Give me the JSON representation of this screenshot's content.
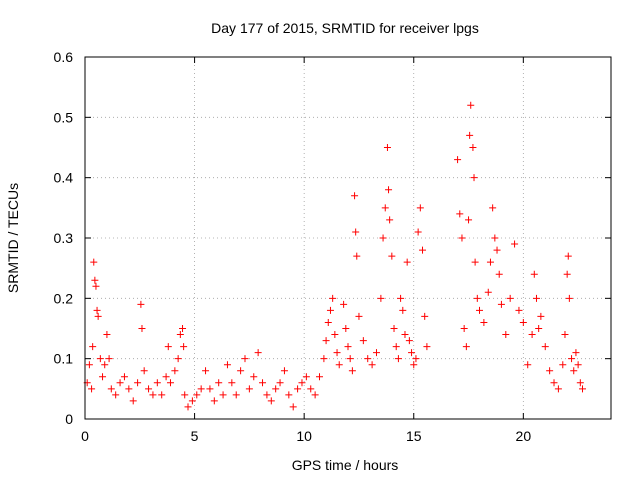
{
  "chart_data": {
    "type": "scatter",
    "title": "Day 177 of 2015, SRMTID for receiver lpgs",
    "xlabel": "GPS time / hours",
    "ylabel": "SRMTID / TECUs",
    "xlim": [
      0,
      24
    ],
    "ylim": [
      0,
      0.6
    ],
    "x_ticks": [
      0,
      5,
      10,
      15,
      20
    ],
    "x_tick_labels": [
      "0",
      "5",
      "10",
      "15",
      "20"
    ],
    "y_ticks": [
      0,
      0.1,
      0.2,
      0.3,
      0.4,
      0.5,
      0.6
    ],
    "y_tick_labels": [
      "0",
      "0.1",
      "0.2",
      "0.3",
      "0.4",
      "0.5",
      "0.6"
    ],
    "grid": true,
    "marker": "plus",
    "marker_color": "#ff0000",
    "series": [
      {
        "name": "SRMTID",
        "points": [
          [
            0.1,
            0.06
          ],
          [
            0.2,
            0.09
          ],
          [
            0.3,
            0.05
          ],
          [
            0.35,
            0.12
          ],
          [
            0.4,
            0.26
          ],
          [
            0.45,
            0.23
          ],
          [
            0.5,
            0.22
          ],
          [
            0.55,
            0.18
          ],
          [
            0.6,
            0.17
          ],
          [
            0.7,
            0.1
          ],
          [
            0.8,
            0.07
          ],
          [
            0.9,
            0.09
          ],
          [
            1.0,
            0.14
          ],
          [
            1.1,
            0.1
          ],
          [
            1.2,
            0.05
          ],
          [
            1.4,
            0.04
          ],
          [
            1.6,
            0.06
          ],
          [
            1.8,
            0.07
          ],
          [
            2.0,
            0.05
          ],
          [
            2.2,
            0.03
          ],
          [
            2.4,
            0.06
          ],
          [
            2.55,
            0.19
          ],
          [
            2.6,
            0.15
          ],
          [
            2.7,
            0.08
          ],
          [
            2.9,
            0.05
          ],
          [
            3.1,
            0.04
          ],
          [
            3.3,
            0.06
          ],
          [
            3.5,
            0.04
          ],
          [
            3.7,
            0.07
          ],
          [
            3.8,
            0.12
          ],
          [
            3.9,
            0.06
          ],
          [
            4.1,
            0.08
          ],
          [
            4.25,
            0.1
          ],
          [
            4.35,
            0.14
          ],
          [
            4.45,
            0.15
          ],
          [
            4.5,
            0.12
          ],
          [
            4.55,
            0.04
          ],
          [
            4.7,
            0.02
          ],
          [
            4.9,
            0.03
          ],
          [
            5.1,
            0.04
          ],
          [
            5.3,
            0.05
          ],
          [
            5.5,
            0.08
          ],
          [
            5.7,
            0.05
          ],
          [
            5.9,
            0.03
          ],
          [
            6.1,
            0.06
          ],
          [
            6.3,
            0.04
          ],
          [
            6.5,
            0.09
          ],
          [
            6.7,
            0.06
          ],
          [
            6.9,
            0.04
          ],
          [
            7.1,
            0.08
          ],
          [
            7.3,
            0.1
          ],
          [
            7.5,
            0.05
          ],
          [
            7.7,
            0.07
          ],
          [
            7.9,
            0.11
          ],
          [
            8.1,
            0.06
          ],
          [
            8.3,
            0.04
          ],
          [
            8.5,
            0.03
          ],
          [
            8.7,
            0.05
          ],
          [
            8.9,
            0.06
          ],
          [
            9.1,
            0.08
          ],
          [
            9.3,
            0.04
          ],
          [
            9.5,
            0.02
          ],
          [
            9.7,
            0.05
          ],
          [
            9.9,
            0.06
          ],
          [
            10.1,
            0.07
          ],
          [
            10.3,
            0.05
          ],
          [
            10.5,
            0.04
          ],
          [
            10.7,
            0.07
          ],
          [
            10.9,
            0.1
          ],
          [
            11.0,
            0.13
          ],
          [
            11.1,
            0.16
          ],
          [
            11.2,
            0.18
          ],
          [
            11.3,
            0.2
          ],
          [
            11.4,
            0.14
          ],
          [
            11.5,
            0.11
          ],
          [
            11.6,
            0.09
          ],
          [
            11.8,
            0.19
          ],
          [
            11.9,
            0.15
          ],
          [
            12.0,
            0.12
          ],
          [
            12.1,
            0.1
          ],
          [
            12.2,
            0.08
          ],
          [
            12.3,
            0.37
          ],
          [
            12.35,
            0.31
          ],
          [
            12.4,
            0.27
          ],
          [
            12.5,
            0.17
          ],
          [
            12.7,
            0.13
          ],
          [
            12.9,
            0.1
          ],
          [
            13.1,
            0.09
          ],
          [
            13.3,
            0.11
          ],
          [
            13.5,
            0.2
          ],
          [
            13.6,
            0.3
          ],
          [
            13.7,
            0.35
          ],
          [
            13.8,
            0.45
          ],
          [
            13.85,
            0.38
          ],
          [
            13.9,
            0.33
          ],
          [
            14.0,
            0.27
          ],
          [
            14.1,
            0.15
          ],
          [
            14.2,
            0.12
          ],
          [
            14.3,
            0.1
          ],
          [
            14.4,
            0.2
          ],
          [
            14.5,
            0.18
          ],
          [
            14.6,
            0.14
          ],
          [
            14.7,
            0.26
          ],
          [
            14.8,
            0.13
          ],
          [
            14.9,
            0.11
          ],
          [
            15.0,
            0.09
          ],
          [
            15.1,
            0.1
          ],
          [
            15.2,
            0.31
          ],
          [
            15.3,
            0.35
          ],
          [
            15.4,
            0.28
          ],
          [
            15.5,
            0.17
          ],
          [
            15.6,
            0.12
          ],
          [
            17.0,
            0.43
          ],
          [
            17.1,
            0.34
          ],
          [
            17.2,
            0.3
          ],
          [
            17.3,
            0.15
          ],
          [
            17.4,
            0.12
          ],
          [
            17.5,
            0.33
          ],
          [
            17.55,
            0.47
          ],
          [
            17.6,
            0.52
          ],
          [
            17.7,
            0.45
          ],
          [
            17.75,
            0.4
          ],
          [
            17.8,
            0.26
          ],
          [
            17.9,
            0.2
          ],
          [
            18.0,
            0.18
          ],
          [
            18.2,
            0.16
          ],
          [
            18.4,
            0.21
          ],
          [
            18.5,
            0.26
          ],
          [
            18.6,
            0.35
          ],
          [
            18.7,
            0.3
          ],
          [
            18.8,
            0.28
          ],
          [
            18.9,
            0.24
          ],
          [
            19.0,
            0.19
          ],
          [
            19.2,
            0.14
          ],
          [
            19.4,
            0.2
          ],
          [
            19.6,
            0.29
          ],
          [
            19.8,
            0.18
          ],
          [
            20.0,
            0.16
          ],
          [
            20.2,
            0.09
          ],
          [
            20.4,
            0.14
          ],
          [
            20.5,
            0.24
          ],
          [
            20.6,
            0.2
          ],
          [
            20.7,
            0.15
          ],
          [
            20.8,
            0.17
          ],
          [
            21.0,
            0.12
          ],
          [
            21.2,
            0.08
          ],
          [
            21.4,
            0.06
          ],
          [
            21.6,
            0.05
          ],
          [
            21.8,
            0.09
          ],
          [
            21.9,
            0.14
          ],
          [
            22.0,
            0.24
          ],
          [
            22.05,
            0.27
          ],
          [
            22.1,
            0.2
          ],
          [
            22.2,
            0.1
          ],
          [
            22.3,
            0.08
          ],
          [
            22.4,
            0.11
          ],
          [
            22.5,
            0.09
          ],
          [
            22.6,
            0.06
          ],
          [
            22.7,
            0.05
          ]
        ]
      }
    ]
  }
}
